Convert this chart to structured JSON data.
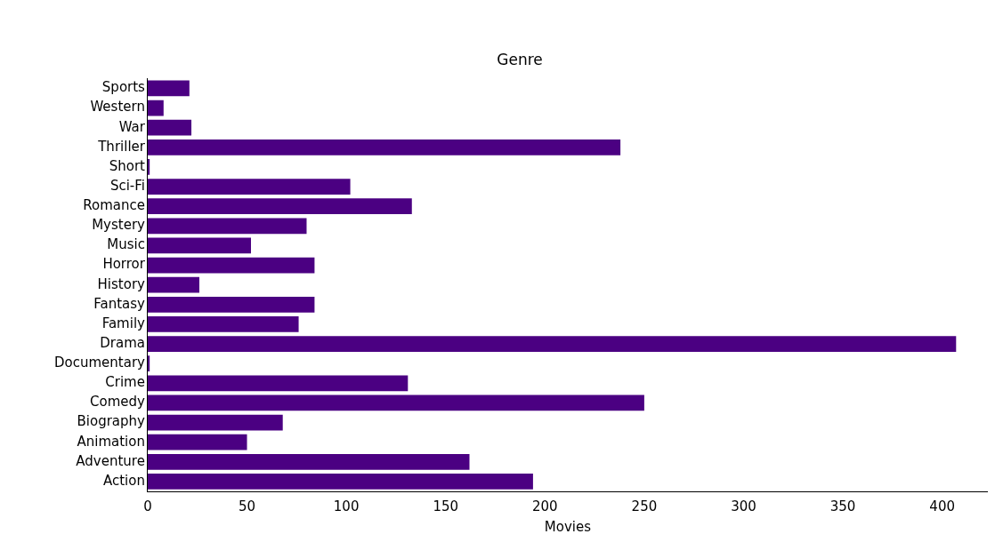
{
  "chart_data": {
    "type": "bar",
    "orientation": "horizontal",
    "title": "Genre",
    "xlabel": "Movies",
    "categories": [
      "Sports",
      "Western",
      "War",
      "Thriller",
      "Short",
      "Sci-Fi",
      "Romance",
      "Mystery",
      "Music",
      "Horror",
      "History",
      "Fantasy",
      "Family",
      "Drama",
      "Documentary",
      "Crime",
      "Comedy",
      "Biography",
      "Animation",
      "Adventure",
      "Action"
    ],
    "values": [
      21,
      8,
      22,
      238,
      1,
      102,
      133,
      80,
      52,
      84,
      26,
      84,
      76,
      407,
      1,
      131,
      250,
      68,
      50,
      162,
      194
    ],
    "color": "#4b0082",
    "xlim": [
      0,
      423
    ],
    "xticks": [
      0,
      50,
      100,
      150,
      200,
      250,
      300,
      350,
      400
    ],
    "grid": false,
    "legend": false
  }
}
